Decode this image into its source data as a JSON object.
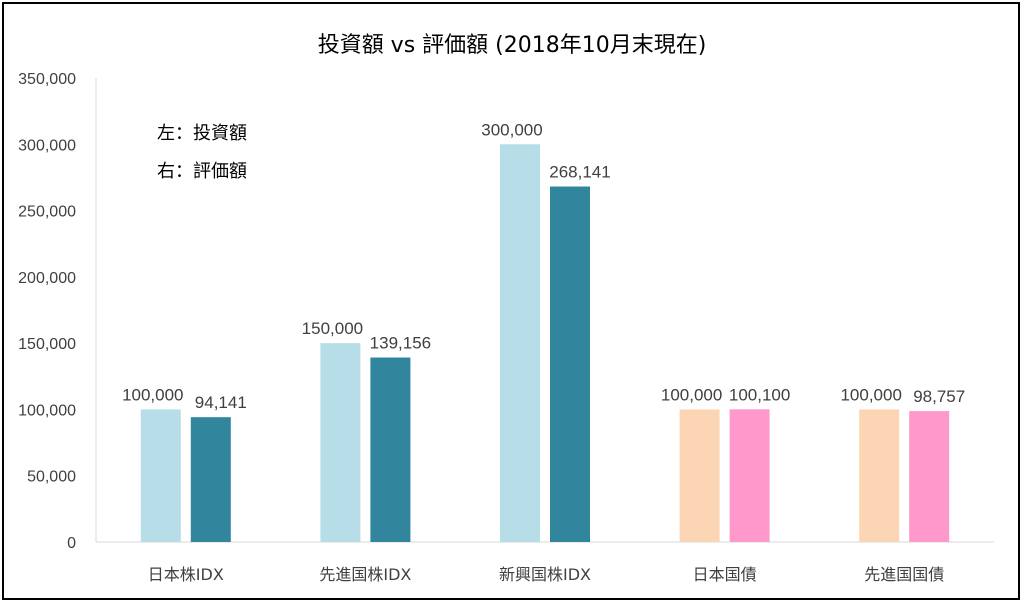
{
  "chart_data": {
    "type": "bar",
    "title": "投資額 vs 評価額 (2018年10月末現在)",
    "xlabel": "",
    "ylabel": "",
    "categories": [
      "日本株IDX",
      "先進国株IDX",
      "新興国株IDX",
      "日本国債",
      "先進国国債"
    ],
    "series": [
      {
        "values": [
          100000,
          150000,
          300000,
          100000,
          100000
        ]
      },
      {
        "values": [
          94141,
          139156,
          268141,
          100100,
          98757
        ]
      }
    ],
    "data_labels": [
      [
        "100,000",
        "150,000",
        "300,000",
        "100,000",
        "100,000"
      ],
      [
        "94,141",
        "139,156",
        "268,141",
        "100,100",
        "98,757"
      ]
    ],
    "bar_colors": [
      [
        "#b7dde8",
        "#b7dde8",
        "#b7dde8",
        "#fcd5b4",
        "#fcd5b4"
      ],
      [
        "#31859c",
        "#31859c",
        "#31859c",
        "#ff99cc",
        "#ff99cc"
      ]
    ],
    "ylim": [
      0,
      350000
    ],
    "yticks": [
      0,
      50000,
      100000,
      150000,
      200000,
      250000,
      300000,
      350000
    ],
    "ytick_labels": [
      "0",
      "50,000",
      "100,000",
      "150,000",
      "200,000",
      "250,000",
      "300,000",
      "350,000"
    ],
    "grid": false,
    "annotations": [
      "左：投資額",
      "右：評価額"
    ]
  }
}
